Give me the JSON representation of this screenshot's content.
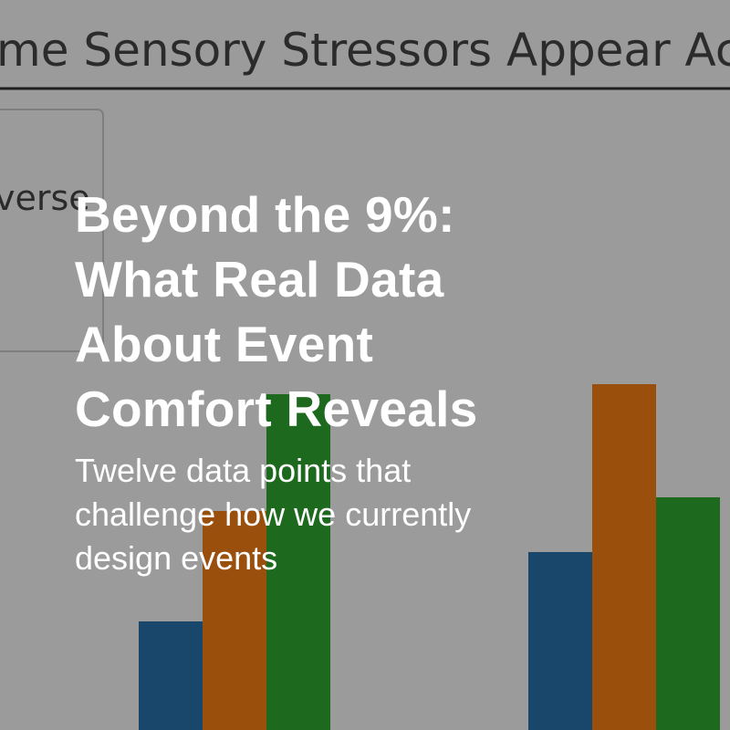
{
  "background": {
    "chart_title": "me Sensory Stressors Appear Ac",
    "legend_text": "verse"
  },
  "overlay": {
    "title_lines": [
      "Beyond the 9%:",
      "What Real Data",
      "About Event",
      "Comfort Reveals"
    ],
    "subtitle_lines": [
      "Twelve data points that",
      "challenge how we currently",
      "design events"
    ]
  }
}
